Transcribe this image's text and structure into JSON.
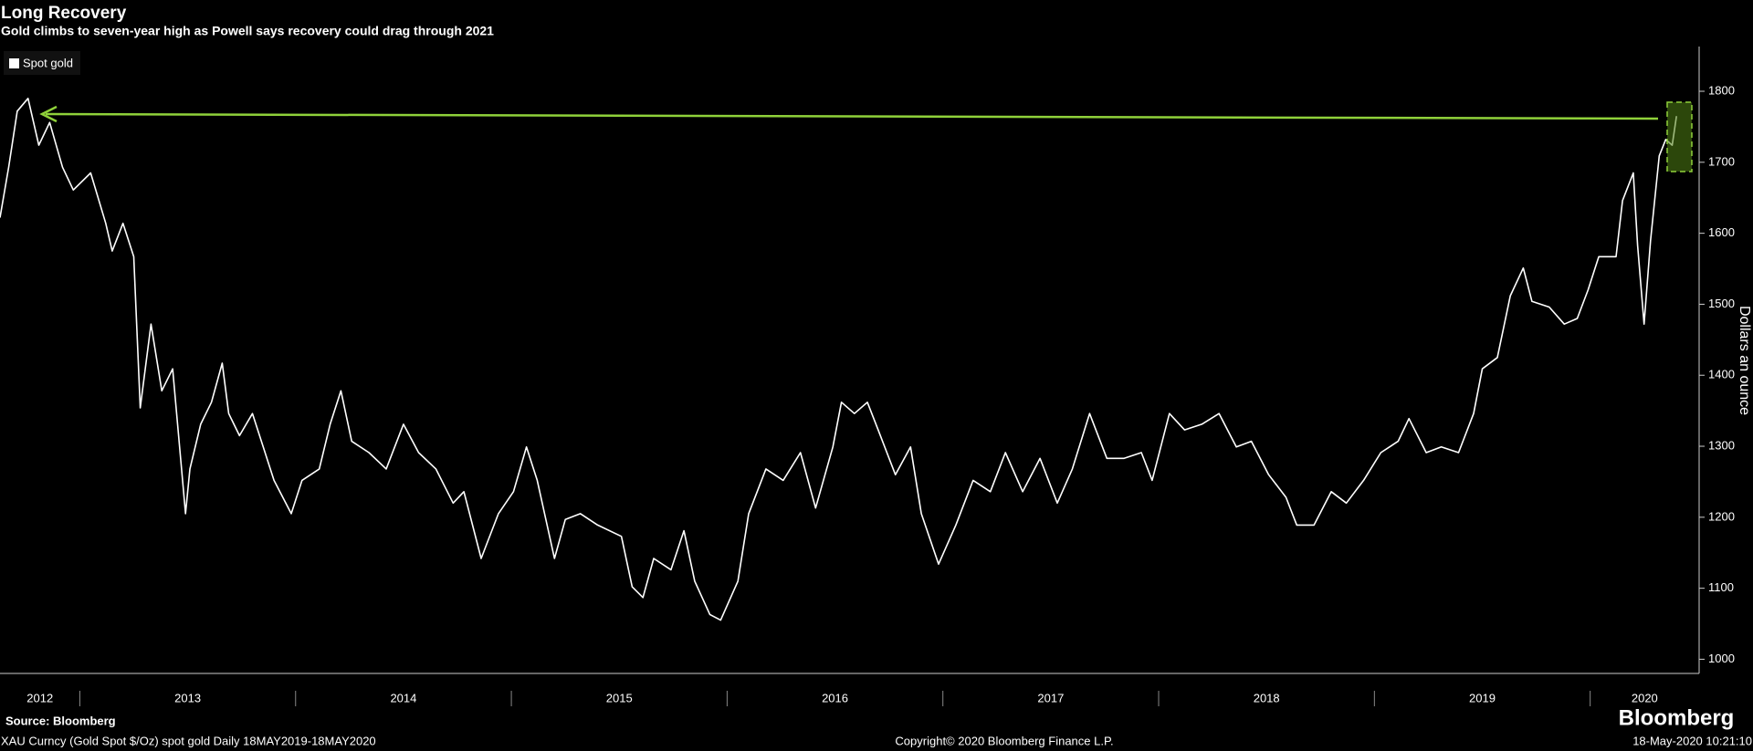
{
  "chart_data": {
    "type": "line",
    "title": "Long Recovery",
    "subtitle": "Gold climbs to seven-year high as Powell says recovery could drag through 2021",
    "y_label": "Dollars an ounce",
    "source": "Source: Bloomberg",
    "footer_left": "XAU Curncy (Gold Spot  $/Oz) spot gold  Daily 18MAY2019-18MAY2020",
    "footer_center": "Copyright© 2020 Bloomberg Finance L.P.",
    "footer_right": "18-May-2020 10:21:10",
    "brand": "Bloomberg",
    "legend_position": "top-left",
    "year_labels": [
      "2012",
      "2013",
      "2014",
      "2015",
      "2016",
      "2017",
      "2018",
      "2019",
      "2020"
    ],
    "xlim": [
      2012.63,
      2020.505
    ],
    "xticks": [
      2013,
      2014,
      2015,
      2016,
      2017,
      2018,
      2019,
      2020
    ],
    "ylim": [
      980,
      1863
    ],
    "yticks": [
      1000,
      1100,
      1200,
      1300,
      1400,
      1500,
      1600,
      1700,
      1800
    ],
    "x": [
      2012.63,
      2012.67,
      2012.71,
      2012.76,
      2012.81,
      2012.86,
      2012.92,
      2012.97,
      2013.05,
      2013.12,
      2013.15,
      2013.2,
      2013.25,
      2013.28,
      2013.33,
      2013.38,
      2013.43,
      2013.49,
      2013.51,
      2013.56,
      2013.61,
      2013.66,
      2013.69,
      2013.74,
      2013.8,
      2013.85,
      2013.9,
      2013.98,
      2014.03,
      2014.11,
      2014.16,
      2014.21,
      2014.26,
      2014.34,
      2014.42,
      2014.5,
      2014.57,
      2014.65,
      2014.73,
      2014.78,
      2014.86,
      2014.94,
      2015.01,
      2015.07,
      2015.12,
      2015.2,
      2015.25,
      2015.32,
      2015.4,
      2015.51,
      2015.56,
      2015.61,
      2015.66,
      2015.74,
      2015.8,
      2015.85,
      2015.92,
      2015.97,
      2016.05,
      2016.1,
      2016.18,
      2016.26,
      2016.34,
      2016.41,
      2016.49,
      2016.53,
      2016.59,
      2016.65,
      2016.7,
      2016.78,
      2016.85,
      2016.9,
      2016.98,
      2017.06,
      2017.14,
      2017.22,
      2017.29,
      2017.37,
      2017.45,
      2017.53,
      2017.6,
      2017.68,
      2017.76,
      2017.84,
      2017.92,
      2017.97,
      2018.05,
      2018.12,
      2018.2,
      2018.28,
      2018.36,
      2018.43,
      2018.51,
      2018.59,
      2018.64,
      2018.72,
      2018.8,
      2018.87,
      2018.95,
      2019.03,
      2019.11,
      2019.16,
      2019.24,
      2019.31,
      2019.39,
      2019.46,
      2019.5,
      2019.57,
      2019.63,
      2019.69,
      2019.73,
      2019.81,
      2019.88,
      2019.94,
      2019.99,
      2020.04,
      2020.12,
      2020.15,
      2020.2,
      2020.22,
      2020.25,
      2020.28,
      2020.32,
      2020.35,
      2020.38,
      2020.4
    ],
    "series": [
      {
        "name": "Spot gold",
        "color": "#ffffff",
        "values": [
          1622,
          1693,
          1772,
          1790,
          1724,
          1756,
          1693,
          1661,
          1685,
          1614,
          1575,
          1614,
          1567,
          1354,
          1472,
          1378,
          1409,
          1205,
          1268,
          1331,
          1362,
          1417,
          1346,
          1315,
          1346,
          1299,
          1252,
          1205,
          1252,
          1268,
          1331,
          1378,
          1307,
          1291,
          1268,
          1331,
          1291,
          1268,
          1220,
          1236,
          1142,
          1205,
          1236,
          1299,
          1252,
          1142,
          1197,
          1205,
          1189,
          1173,
          1102,
          1087,
          1142,
          1126,
          1181,
          1110,
          1063,
          1055,
          1110,
          1205,
          1268,
          1252,
          1291,
          1213,
          1299,
          1362,
          1346,
          1362,
          1323,
          1260,
          1299,
          1205,
          1134,
          1189,
          1252,
          1236,
          1291,
          1236,
          1283,
          1220,
          1268,
          1346,
          1283,
          1283,
          1291,
          1252,
          1346,
          1323,
          1331,
          1346,
          1299,
          1307,
          1260,
          1228,
          1189,
          1189,
          1236,
          1220,
          1252,
          1291,
          1307,
          1339,
          1291,
          1299,
          1291,
          1346,
          1409,
          1425,
          1512,
          1551,
          1504,
          1496,
          1472,
          1480,
          1520,
          1567,
          1567,
          1646,
          1685,
          1583,
          1472,
          1590,
          1709,
          1732,
          1724,
          1765
        ]
      }
    ]
  }
}
